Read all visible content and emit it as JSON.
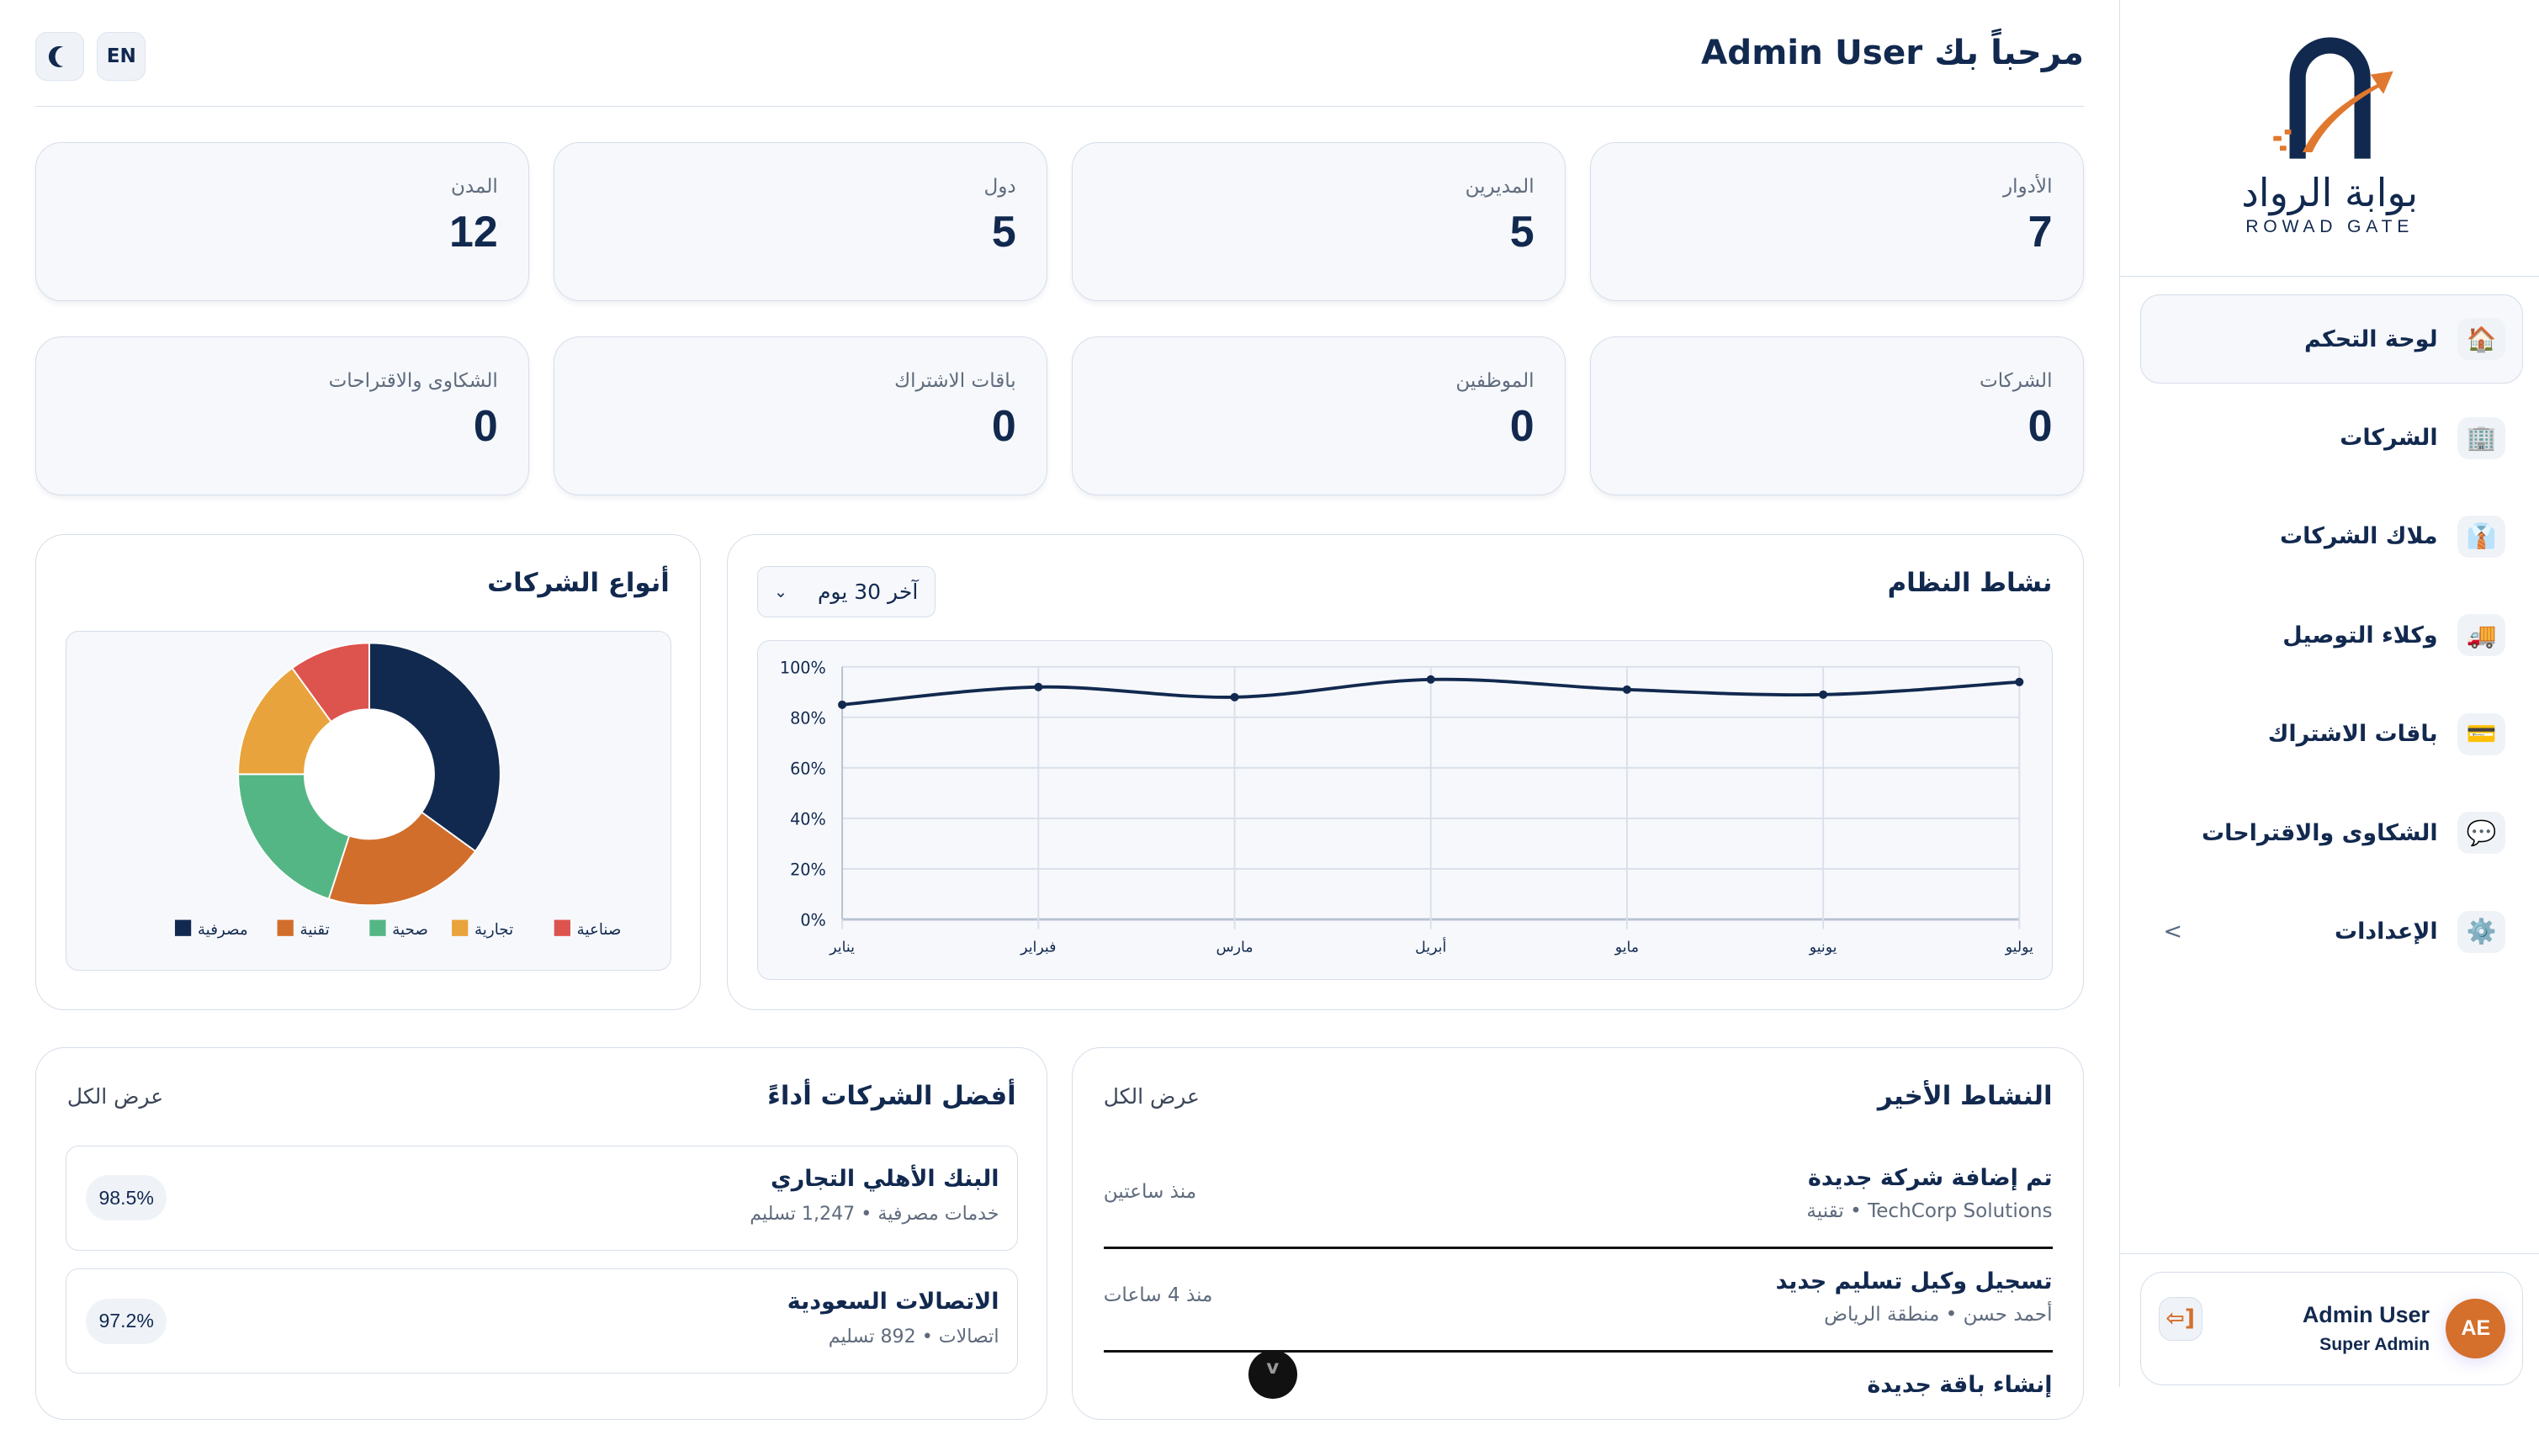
{
  "header": {
    "title": "مرحباً بك Admin User",
    "theme_icon": "moon-icon",
    "lang_label": "EN"
  },
  "brand": {
    "name_ar": "بوابة الرواد",
    "name_en": "ROWAD GATE",
    "colors": {
      "navy": "#12294f",
      "orange": "#d46f2c"
    }
  },
  "sidebar": {
    "items": [
      {
        "label": "لوحة التحكم",
        "icon": "🏠",
        "active": true
      },
      {
        "label": "الشركات",
        "icon": "🏢"
      },
      {
        "label": "ملاك الشركات",
        "icon": "👔"
      },
      {
        "label": "وكلاء التوصيل",
        "icon": "🚚"
      },
      {
        "label": "باقات الاشتراك",
        "icon": "💳"
      },
      {
        "label": "الشكاوى والاقتراحات",
        "icon": "💬"
      },
      {
        "label": "الإعدادات",
        "icon": "⚙️",
        "expand": "<"
      }
    ],
    "user": {
      "name": "Admin User",
      "role": "Super Admin",
      "initials": "AE",
      "logout_icon": "logout-icon"
    }
  },
  "stats": [
    {
      "label": "الأدوار",
      "value": "7"
    },
    {
      "label": "المديرين",
      "value": "5"
    },
    {
      "label": "دول",
      "value": "5"
    },
    {
      "label": "المدن",
      "value": "12"
    },
    {
      "label": "الشركات",
      "value": "0"
    },
    {
      "label": "الموظفين",
      "value": "0"
    },
    {
      "label": "باقات الاشتراك",
      "value": "0"
    },
    {
      "label": "الشكاوى والاقتراحات",
      "value": "0"
    }
  ],
  "activity_panel": {
    "title": "نشاط النظام",
    "range": "آخر 30 يوم"
  },
  "types_panel": {
    "title": "أنواع الشركات"
  },
  "chart_data": [
    {
      "type": "line",
      "categories": [
        "يناير",
        "فبراير",
        "مارس",
        "أبريل",
        "مايو",
        "يونيو",
        "يوليو"
      ],
      "values": [
        85,
        92,
        88,
        95,
        91,
        89,
        94
      ],
      "yticks": [
        "0%",
        "20%",
        "40%",
        "60%",
        "80%",
        "100%"
      ],
      "ylim": [
        0,
        100
      ],
      "grid": true,
      "color": "#12294f"
    },
    {
      "type": "pie",
      "donut": true,
      "labels": [
        "مصرفية",
        "تقنية",
        "صحية",
        "تجارية",
        "صناعية"
      ],
      "values": [
        35,
        20,
        20,
        15,
        10
      ],
      "colors": [
        "#12294f",
        "#d26e2c",
        "#55b685",
        "#e8a33c",
        "#dd534e"
      ],
      "legend": "bottom"
    }
  ],
  "top_companies": {
    "title": "أفضل الشركات أداءً",
    "view_all": "عرض الكل",
    "items": [
      {
        "name": "البنك الأهلي التجاري",
        "sub": "خدمات مصرفية • 1,247 تسليم",
        "score": "98.5%"
      },
      {
        "name": "الاتصالات السعودية",
        "sub": "اتصالات • 892 تسليم",
        "score": "97.2%"
      }
    ]
  },
  "recent_activity": {
    "title": "النشاط الأخير",
    "view_all": "عرض الكل",
    "items": [
      {
        "title": "تم إضافة شركة جديدة",
        "sub": "TechCorp Solutions • تقنية",
        "time": "منذ ساعتين"
      },
      {
        "title": "تسجيل وكيل تسليم جديد",
        "sub": "أحمد حسن • منطقة الرياض",
        "time": "منذ 4 ساعات"
      },
      {
        "title": "إنشاء باقة جديدة"
      }
    ]
  },
  "scroll_button": "v"
}
